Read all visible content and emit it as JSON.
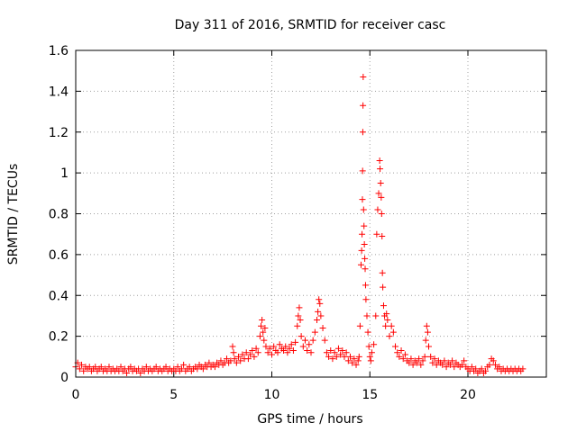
{
  "chart_data": {
    "type": "scatter",
    "title": "Day 311 of 2016, SRMTID for receiver casc",
    "xlabel": "GPS time / hours",
    "ylabel": "SRMTID / TECUs",
    "xlim": [
      0,
      24
    ],
    "ylim": [
      0,
      1.6
    ],
    "xticks": [
      0,
      5,
      10,
      15,
      20
    ],
    "yticks": [
      0,
      0.2,
      0.4,
      0.6,
      0.8,
      1,
      1.2,
      1.4,
      1.6
    ],
    "xtick_labels": [
      "0",
      "5",
      "10",
      "15",
      "20"
    ],
    "ytick_labels": [
      "0",
      "0.2",
      "0.4",
      "0.6",
      "0.8",
      "1",
      "1.2",
      "1.4",
      "1.6"
    ],
    "grid": true,
    "marker": "plus",
    "color": "#ff0000",
    "series": [
      {
        "name": "SRMTID",
        "points": [
          [
            0.0,
            0.05
          ],
          [
            0.1,
            0.07
          ],
          [
            0.2,
            0.04
          ],
          [
            0.3,
            0.06
          ],
          [
            0.4,
            0.03
          ],
          [
            0.5,
            0.05
          ],
          [
            0.6,
            0.04
          ],
          [
            0.7,
            0.05
          ],
          [
            0.8,
            0.03
          ],
          [
            0.9,
            0.04
          ],
          [
            1.0,
            0.05
          ],
          [
            1.1,
            0.03
          ],
          [
            1.2,
            0.04
          ],
          [
            1.3,
            0.05
          ],
          [
            1.4,
            0.03
          ],
          [
            1.5,
            0.04
          ],
          [
            1.6,
            0.03
          ],
          [
            1.7,
            0.05
          ],
          [
            1.8,
            0.03
          ],
          [
            1.9,
            0.04
          ],
          [
            2.0,
            0.03
          ],
          [
            2.1,
            0.04
          ],
          [
            2.2,
            0.03
          ],
          [
            2.3,
            0.05
          ],
          [
            2.4,
            0.03
          ],
          [
            2.5,
            0.04
          ],
          [
            2.6,
            0.02
          ],
          [
            2.7,
            0.04
          ],
          [
            2.8,
            0.05
          ],
          [
            2.9,
            0.03
          ],
          [
            3.0,
            0.04
          ],
          [
            3.1,
            0.03
          ],
          [
            3.2,
            0.04
          ],
          [
            3.3,
            0.02
          ],
          [
            3.4,
            0.04
          ],
          [
            3.5,
            0.03
          ],
          [
            3.6,
            0.05
          ],
          [
            3.7,
            0.03
          ],
          [
            3.8,
            0.04
          ],
          [
            3.9,
            0.03
          ],
          [
            4.0,
            0.04
          ],
          [
            4.1,
            0.05
          ],
          [
            4.2,
            0.03
          ],
          [
            4.3,
            0.04
          ],
          [
            4.4,
            0.03
          ],
          [
            4.5,
            0.04
          ],
          [
            4.6,
            0.05
          ],
          [
            4.7,
            0.03
          ],
          [
            4.8,
            0.04
          ],
          [
            4.9,
            0.03
          ],
          [
            5.0,
            0.04
          ],
          [
            5.1,
            0.03
          ],
          [
            5.2,
            0.05
          ],
          [
            5.3,
            0.03
          ],
          [
            5.4,
            0.04
          ],
          [
            5.5,
            0.06
          ],
          [
            5.6,
            0.03
          ],
          [
            5.7,
            0.04
          ],
          [
            5.8,
            0.05
          ],
          [
            5.9,
            0.03
          ],
          [
            6.0,
            0.04
          ],
          [
            6.1,
            0.05
          ],
          [
            6.2,
            0.04
          ],
          [
            6.3,
            0.06
          ],
          [
            6.4,
            0.05
          ],
          [
            6.5,
            0.04
          ],
          [
            6.6,
            0.06
          ],
          [
            6.7,
            0.05
          ],
          [
            6.8,
            0.07
          ],
          [
            6.9,
            0.05
          ],
          [
            7.0,
            0.06
          ],
          [
            7.1,
            0.05
          ],
          [
            7.2,
            0.07
          ],
          [
            7.3,
            0.06
          ],
          [
            7.4,
            0.08
          ],
          [
            7.5,
            0.06
          ],
          [
            7.6,
            0.07
          ],
          [
            7.7,
            0.09
          ],
          [
            7.8,
            0.07
          ],
          [
            7.9,
            0.08
          ],
          [
            8.0,
            0.15
          ],
          [
            8.05,
            0.12
          ],
          [
            8.1,
            0.09
          ],
          [
            8.2,
            0.07
          ],
          [
            8.3,
            0.1
          ],
          [
            8.4,
            0.08
          ],
          [
            8.5,
            0.11
          ],
          [
            8.6,
            0.09
          ],
          [
            8.7,
            0.12
          ],
          [
            8.8,
            0.09
          ],
          [
            8.9,
            0.11
          ],
          [
            9.0,
            0.13
          ],
          [
            9.1,
            0.1
          ],
          [
            9.2,
            0.14
          ],
          [
            9.3,
            0.12
          ],
          [
            9.4,
            0.2
          ],
          [
            9.45,
            0.25
          ],
          [
            9.5,
            0.28
          ],
          [
            9.55,
            0.22
          ],
          [
            9.6,
            0.18
          ],
          [
            9.65,
            0.24
          ],
          [
            9.7,
            0.15
          ],
          [
            9.8,
            0.12
          ],
          [
            9.9,
            0.14
          ],
          [
            10.0,
            0.11
          ],
          [
            10.1,
            0.15
          ],
          [
            10.2,
            0.13
          ],
          [
            10.3,
            0.12
          ],
          [
            10.4,
            0.16
          ],
          [
            10.5,
            0.14
          ],
          [
            10.6,
            0.13
          ],
          [
            10.7,
            0.15
          ],
          [
            10.8,
            0.12
          ],
          [
            10.9,
            0.14
          ],
          [
            11.0,
            0.16
          ],
          [
            11.1,
            0.13
          ],
          [
            11.2,
            0.17
          ],
          [
            11.3,
            0.25
          ],
          [
            11.35,
            0.3
          ],
          [
            11.4,
            0.34
          ],
          [
            11.45,
            0.28
          ],
          [
            11.5,
            0.2
          ],
          [
            11.6,
            0.15
          ],
          [
            11.7,
            0.18
          ],
          [
            11.8,
            0.13
          ],
          [
            11.9,
            0.16
          ],
          [
            12.0,
            0.12
          ],
          [
            12.1,
            0.18
          ],
          [
            12.2,
            0.22
          ],
          [
            12.3,
            0.28
          ],
          [
            12.35,
            0.32
          ],
          [
            12.4,
            0.38
          ],
          [
            12.45,
            0.36
          ],
          [
            12.5,
            0.3
          ],
          [
            12.6,
            0.24
          ],
          [
            12.7,
            0.18
          ],
          [
            12.8,
            0.12
          ],
          [
            12.9,
            0.1
          ],
          [
            13.0,
            0.13
          ],
          [
            13.1,
            0.09
          ],
          [
            13.2,
            0.12
          ],
          [
            13.3,
            0.1
          ],
          [
            13.4,
            0.14
          ],
          [
            13.5,
            0.11
          ],
          [
            13.6,
            0.13
          ],
          [
            13.7,
            0.1
          ],
          [
            13.8,
            0.12
          ],
          [
            13.9,
            0.08
          ],
          [
            14.0,
            0.1
          ],
          [
            14.1,
            0.07
          ],
          [
            14.2,
            0.09
          ],
          [
            14.3,
            0.06
          ],
          [
            14.4,
            0.08
          ],
          [
            14.45,
            0.1
          ],
          [
            14.5,
            0.25
          ],
          [
            14.55,
            0.55
          ],
          [
            14.58,
            0.62
          ],
          [
            14.6,
            0.7
          ],
          [
            14.62,
            0.87
          ],
          [
            14.63,
            1.01
          ],
          [
            14.64,
            1.2
          ],
          [
            14.65,
            1.33
          ],
          [
            14.66,
            1.47
          ],
          [
            14.68,
            0.82
          ],
          [
            14.7,
            0.74
          ],
          [
            14.72,
            0.65
          ],
          [
            14.74,
            0.58
          ],
          [
            14.76,
            0.53
          ],
          [
            14.78,
            0.45
          ],
          [
            14.8,
            0.38
          ],
          [
            14.85,
            0.3
          ],
          [
            14.9,
            0.22
          ],
          [
            14.95,
            0.15
          ],
          [
            15.0,
            0.1
          ],
          [
            15.05,
            0.08
          ],
          [
            15.1,
            0.12
          ],
          [
            15.2,
            0.16
          ],
          [
            15.3,
            0.3
          ],
          [
            15.35,
            0.7
          ],
          [
            15.4,
            0.82
          ],
          [
            15.45,
            0.9
          ],
          [
            15.5,
            1.06
          ],
          [
            15.52,
            1.02
          ],
          [
            15.55,
            0.95
          ],
          [
            15.58,
            0.88
          ],
          [
            15.6,
            0.8
          ],
          [
            15.62,
            0.69
          ],
          [
            15.64,
            0.51
          ],
          [
            15.66,
            0.44
          ],
          [
            15.7,
            0.35
          ],
          [
            15.75,
            0.3
          ],
          [
            15.8,
            0.25
          ],
          [
            15.85,
            0.31
          ],
          [
            15.9,
            0.28
          ],
          [
            16.0,
            0.2
          ],
          [
            16.1,
            0.25
          ],
          [
            16.2,
            0.22
          ],
          [
            16.3,
            0.15
          ],
          [
            16.4,
            0.12
          ],
          [
            16.5,
            0.1
          ],
          [
            16.6,
            0.13
          ],
          [
            16.7,
            0.09
          ],
          [
            16.8,
            0.11
          ],
          [
            16.9,
            0.08
          ],
          [
            17.0,
            0.07
          ],
          [
            17.1,
            0.09
          ],
          [
            17.2,
            0.06
          ],
          [
            17.3,
            0.08
          ],
          [
            17.4,
            0.07
          ],
          [
            17.5,
            0.09
          ],
          [
            17.6,
            0.06
          ],
          [
            17.7,
            0.08
          ],
          [
            17.8,
            0.1
          ],
          [
            17.85,
            0.18
          ],
          [
            17.9,
            0.25
          ],
          [
            17.95,
            0.22
          ],
          [
            18.0,
            0.15
          ],
          [
            18.1,
            0.1
          ],
          [
            18.2,
            0.07
          ],
          [
            18.3,
            0.09
          ],
          [
            18.4,
            0.06
          ],
          [
            18.5,
            0.08
          ],
          [
            18.6,
            0.07
          ],
          [
            18.7,
            0.06
          ],
          [
            18.8,
            0.08
          ],
          [
            18.9,
            0.05
          ],
          [
            19.0,
            0.07
          ],
          [
            19.1,
            0.06
          ],
          [
            19.2,
            0.08
          ],
          [
            19.3,
            0.05
          ],
          [
            19.4,
            0.07
          ],
          [
            19.5,
            0.06
          ],
          [
            19.6,
            0.05
          ],
          [
            19.7,
            0.06
          ],
          [
            19.8,
            0.08
          ],
          [
            19.9,
            0.05
          ],
          [
            20.0,
            0.04
          ],
          [
            20.1,
            0.03
          ],
          [
            20.2,
            0.05
          ],
          [
            20.3,
            0.03
          ],
          [
            20.4,
            0.04
          ],
          [
            20.5,
            0.02
          ],
          [
            20.6,
            0.03
          ],
          [
            20.7,
            0.04
          ],
          [
            20.8,
            0.02
          ],
          [
            20.9,
            0.03
          ],
          [
            21.0,
            0.05
          ],
          [
            21.1,
            0.06
          ],
          [
            21.2,
            0.09
          ],
          [
            21.3,
            0.08
          ],
          [
            21.4,
            0.06
          ],
          [
            21.5,
            0.04
          ],
          [
            21.6,
            0.05
          ],
          [
            21.7,
            0.03
          ],
          [
            21.8,
            0.04
          ],
          [
            21.9,
            0.03
          ],
          [
            22.0,
            0.04
          ],
          [
            22.1,
            0.03
          ],
          [
            22.2,
            0.04
          ],
          [
            22.3,
            0.03
          ],
          [
            22.4,
            0.04
          ],
          [
            22.5,
            0.03
          ],
          [
            22.6,
            0.04
          ],
          [
            22.7,
            0.03
          ],
          [
            22.8,
            0.04
          ]
        ]
      }
    ]
  }
}
